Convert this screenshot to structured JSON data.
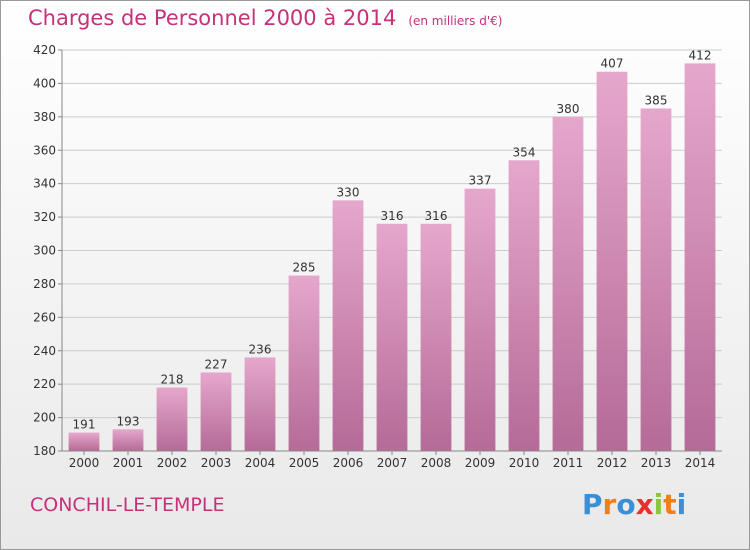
{
  "title": "Charges de Personnel 2000 à 2014",
  "unit_note": "(en milliers d'€)",
  "town": "CONCHIL-LE-TEMPLE",
  "logo": {
    "text": "Proxiti",
    "letters": [
      {
        "ch": "P",
        "color": "#3a8fd6"
      },
      {
        "ch": "r",
        "color": "#f07f1e"
      },
      {
        "ch": "o",
        "color": "#3a8fd6"
      },
      {
        "ch": "x",
        "color": "#e8312f"
      },
      {
        "ch": "i",
        "color": "#8cc63e"
      },
      {
        "ch": "t",
        "color": "#f07f1e"
      },
      {
        "ch": "i",
        "color": "#3a8fd6"
      }
    ]
  },
  "colors": {
    "accent": "#c6317a",
    "bar_top": "#e6a7cd",
    "bar_bottom": "#b46b97",
    "grid": "#cccccc",
    "axis_text": "#333333"
  },
  "chart_data": {
    "type": "bar",
    "title": "Charges de Personnel 2000 à 2014",
    "xlabel": "",
    "ylabel": "",
    "categories": [
      "2000",
      "2001",
      "2002",
      "2003",
      "2004",
      "2005",
      "2006",
      "2007",
      "2008",
      "2009",
      "2010",
      "2011",
      "2012",
      "2013",
      "2014"
    ],
    "values": [
      191,
      193,
      218,
      227,
      236,
      285,
      330,
      316,
      316,
      337,
      354,
      380,
      407,
      385,
      412
    ],
    "ylim": [
      180,
      420
    ],
    "yticks": [
      180,
      200,
      220,
      240,
      260,
      280,
      300,
      320,
      340,
      360,
      380,
      400,
      420
    ],
    "grid": true,
    "data_labels": true
  }
}
